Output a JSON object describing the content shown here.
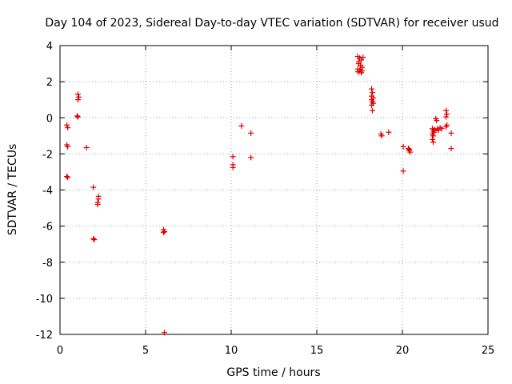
{
  "chart_data": {
    "type": "scatter",
    "title": "Day 104 of 2023, Sidereal Day-to-day VTEC variation (SDTVAR) for receiver usud",
    "xlabel": "GPS time / hours",
    "ylabel": "SDTVAR / TECUs",
    "xlim": [
      0,
      25
    ],
    "ylim": [
      -12,
      4
    ],
    "xticks": [
      0,
      5,
      10,
      15,
      20,
      25
    ],
    "yticks": [
      4,
      2,
      0,
      -2,
      -4,
      -6,
      -8,
      -10,
      -12
    ],
    "xtick_labels": [
      "0",
      "5",
      "10",
      "15",
      "20",
      "25"
    ],
    "ytick_labels": [
      "4",
      "2",
      "0",
      "-2",
      "-4",
      "-6",
      "-8",
      "-10",
      "-12"
    ],
    "grid": true,
    "marker": "+",
    "color": "#e00000",
    "series": [
      {
        "name": "SDTVAR",
        "points": [
          [
            0.4,
            -0.4
          ],
          [
            0.45,
            -0.55
          ],
          [
            0.4,
            -1.5
          ],
          [
            0.45,
            -1.6
          ],
          [
            0.4,
            -3.25
          ],
          [
            0.45,
            -3.3
          ],
          [
            1.05,
            1.3
          ],
          [
            1.1,
            1.15
          ],
          [
            1.05,
            1.0
          ],
          [
            1.0,
            0.1
          ],
          [
            1.05,
            0.05
          ],
          [
            1.55,
            -1.65
          ],
          [
            1.95,
            -3.85
          ],
          [
            1.95,
            -6.7
          ],
          [
            2.0,
            -6.75
          ],
          [
            2.25,
            -4.35
          ],
          [
            2.25,
            -4.5
          ],
          [
            2.2,
            -4.7
          ],
          [
            2.2,
            -4.8
          ],
          [
            6.05,
            -6.2
          ],
          [
            6.05,
            -6.35
          ],
          [
            6.1,
            -6.3
          ],
          [
            6.1,
            -11.9
          ],
          [
            10.1,
            -2.15
          ],
          [
            10.1,
            -2.6
          ],
          [
            10.1,
            -2.75
          ],
          [
            10.6,
            -0.45
          ],
          [
            11.15,
            -0.85
          ],
          [
            11.15,
            -2.2
          ],
          [
            17.4,
            3.4
          ],
          [
            17.5,
            3.3
          ],
          [
            17.6,
            3.2
          ],
          [
            17.45,
            3.0
          ],
          [
            17.55,
            2.9
          ],
          [
            17.65,
            2.8
          ],
          [
            17.4,
            2.7
          ],
          [
            17.5,
            2.6
          ],
          [
            17.6,
            2.5
          ],
          [
            17.45,
            3.1
          ],
          [
            17.55,
            2.7
          ],
          [
            17.7,
            3.35
          ],
          [
            17.4,
            2.55
          ],
          [
            17.65,
            2.6
          ],
          [
            18.2,
            1.6
          ],
          [
            18.25,
            1.4
          ],
          [
            18.2,
            1.2
          ],
          [
            18.3,
            1.1
          ],
          [
            18.2,
            1.0
          ],
          [
            18.25,
            0.9
          ],
          [
            18.3,
            0.8
          ],
          [
            18.2,
            0.7
          ],
          [
            18.25,
            0.4
          ],
          [
            18.75,
            -0.9
          ],
          [
            18.8,
            -1.0
          ],
          [
            19.2,
            -0.8
          ],
          [
            20.05,
            -1.6
          ],
          [
            20.05,
            -2.95
          ],
          [
            20.35,
            -1.7
          ],
          [
            20.4,
            -1.8
          ],
          [
            20.45,
            -1.9
          ],
          [
            20.4,
            -1.75
          ],
          [
            21.75,
            -0.6
          ],
          [
            21.8,
            -0.7
          ],
          [
            21.85,
            -0.8
          ],
          [
            21.75,
            -0.9
          ],
          [
            21.8,
            -1.0
          ],
          [
            21.75,
            -1.2
          ],
          [
            21.8,
            -1.35
          ],
          [
            21.9,
            -0.65
          ],
          [
            21.95,
            -0.05
          ],
          [
            22.0,
            -0.15
          ],
          [
            22.05,
            -0.6
          ],
          [
            22.1,
            -0.7
          ],
          [
            22.2,
            -0.55
          ],
          [
            22.3,
            -0.6
          ],
          [
            22.55,
            0.4
          ],
          [
            22.6,
            0.2
          ],
          [
            22.55,
            0.05
          ],
          [
            22.6,
            -0.4
          ],
          [
            22.55,
            -0.5
          ],
          [
            22.85,
            -0.85
          ],
          [
            22.85,
            -1.7
          ]
        ]
      }
    ]
  }
}
